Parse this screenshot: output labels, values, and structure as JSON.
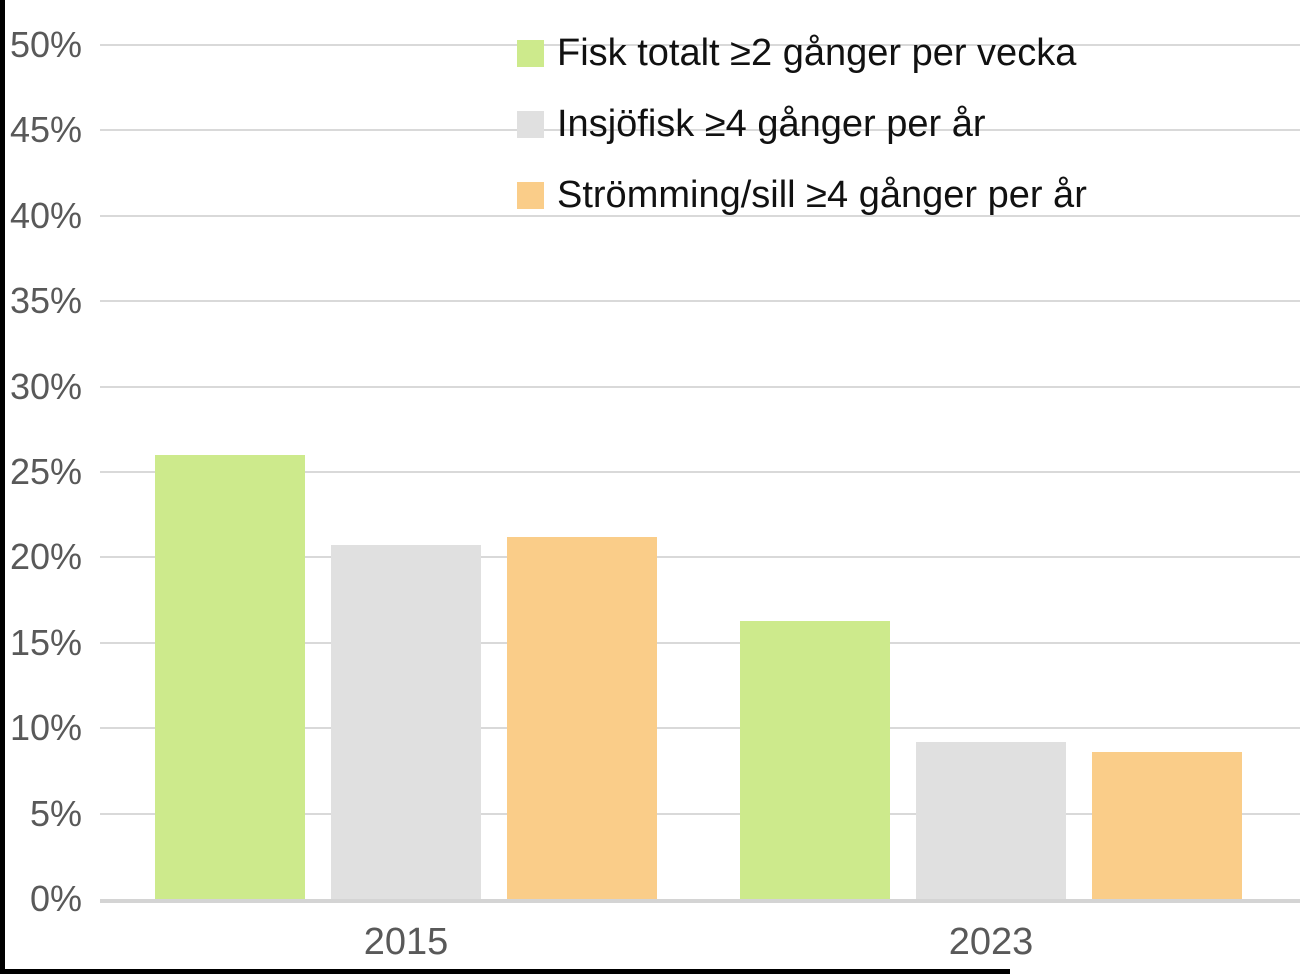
{
  "chart_data": {
    "type": "bar",
    "categories": [
      "2015",
      "2023"
    ],
    "series": [
      {
        "name": "Fisk totalt ≥2 gånger per vecka",
        "color": "#cdea8c",
        "values": [
          26.0,
          16.3
        ]
      },
      {
        "name": "Insjöfisk ≥4 gånger per år",
        "color": "#e0e0e0",
        "values": [
          20.7,
          9.2
        ]
      },
      {
        "name": "Strömming/sill ≥4 gånger per år",
        "color": "#facd89",
        "values": [
          21.2,
          8.6
        ]
      }
    ],
    "title": "",
    "xlabel": "",
    "ylabel": "",
    "ylim": [
      0,
      50
    ],
    "ytick_step": 5,
    "ytick_format": "{v}%",
    "grid": true,
    "legend_position": "top-right"
  },
  "colors": {
    "grid": "#d9d9d9",
    "axis_baseline": "#d4d4d4",
    "tick_text": "#595959",
    "legend_text": "#111111",
    "frame_border": "#000000",
    "background": "#ffffff"
  }
}
